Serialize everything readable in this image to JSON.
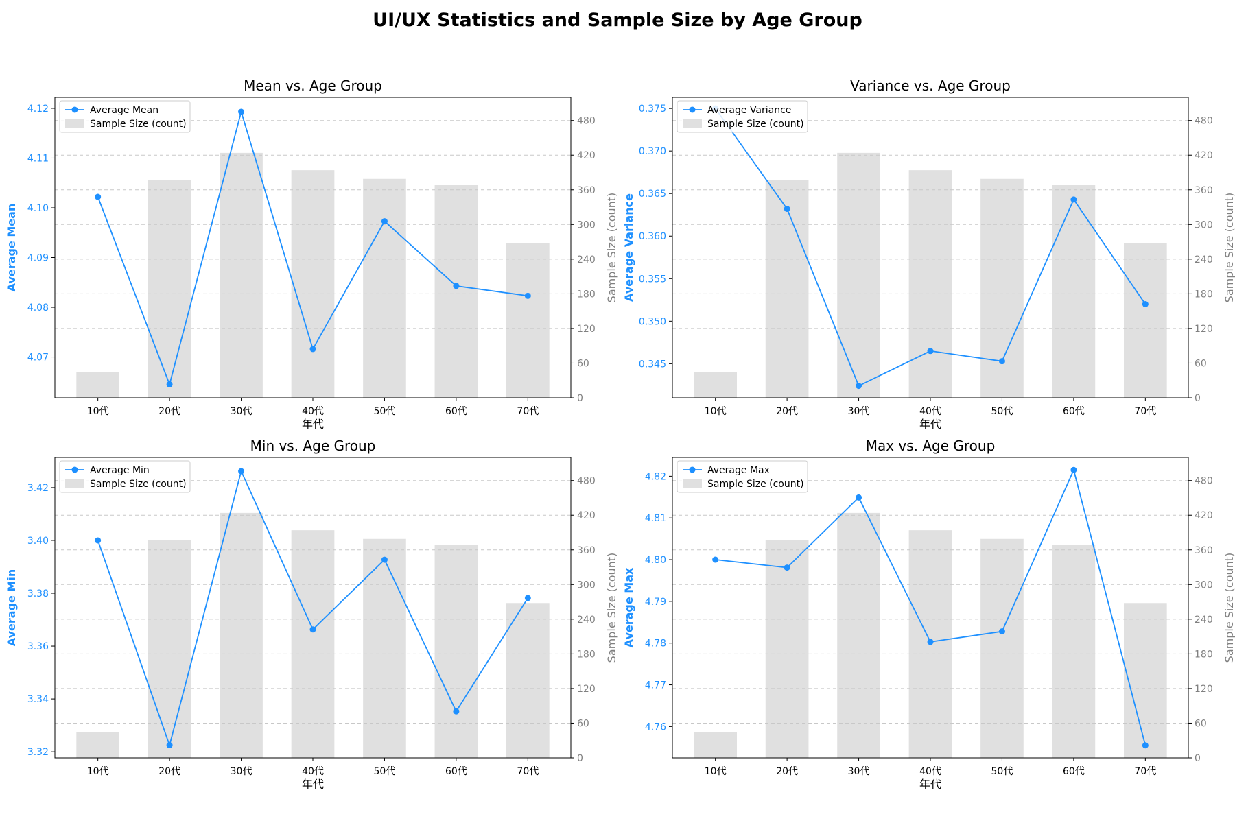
{
  "title": "UI/UX Statistics and Sample Size by Age Group",
  "colors": {
    "line": "#1e90ff",
    "bar": "#e0e0e0",
    "right_axis_text": "#808080",
    "grid": "#c8c8c8"
  },
  "chart_data": [
    {
      "type": "bar+line",
      "title": "Mean vs. Age Group",
      "xlabel": "年代",
      "ylabel": "Average Mean",
      "y2label": "Sample Size (count)",
      "categories": [
        "10代",
        "20代",
        "30代",
        "40代",
        "50代",
        "60代",
        "70代"
      ],
      "line_series": {
        "name": "Average Mean",
        "values": [
          4.1022,
          4.0645,
          4.1193,
          4.0716,
          4.0973,
          4.0843,
          4.0823
        ]
      },
      "bar_series": {
        "name": "Sample Size (count)",
        "values": [
          45,
          377,
          424,
          394,
          379,
          368,
          268
        ]
      },
      "ylim": [
        4.0618,
        4.1222
      ],
      "yticks": [
        4.07,
        4.08,
        4.09,
        4.1,
        4.11,
        4.12
      ],
      "ytick_labels": [
        "4.07",
        "4.08",
        "4.09",
        "4.10",
        "4.11",
        "4.12"
      ],
      "y2lim": [
        0,
        520
      ],
      "y2ticks": [
        0,
        60,
        120,
        180,
        240,
        300,
        360,
        420,
        480
      ],
      "y2tick_labels": [
        "0",
        "60",
        "120",
        "180",
        "240",
        "300",
        "360",
        "420",
        "480"
      ],
      "grid": true,
      "legend_loc": "upper-left"
    },
    {
      "type": "bar+line",
      "title": "Variance vs. Age Group",
      "xlabel": "年代",
      "ylabel": "Average Variance",
      "y2label": "Sample Size (count)",
      "categories": [
        "10代",
        "20代",
        "30代",
        "40代",
        "50代",
        "60代",
        "70代"
      ],
      "line_series": {
        "name": "Average Variance",
        "values": [
          0.375,
          0.3632,
          0.3424,
          0.3465,
          0.3453,
          0.3643,
          0.352
        ]
      },
      "bar_series": {
        "name": "Sample Size (count)",
        "values": [
          45,
          377,
          424,
          394,
          379,
          368,
          268
        ]
      },
      "ylim": [
        0.341,
        0.3763
      ],
      "yticks": [
        0.345,
        0.35,
        0.355,
        0.36,
        0.365,
        0.37,
        0.375
      ],
      "ytick_labels": [
        "0.345",
        "0.350",
        "0.355",
        "0.360",
        "0.365",
        "0.370",
        "0.375"
      ],
      "y2lim": [
        0,
        520
      ],
      "y2ticks": [
        0,
        60,
        120,
        180,
        240,
        300,
        360,
        420,
        480
      ],
      "y2tick_labels": [
        "0",
        "60",
        "120",
        "180",
        "240",
        "300",
        "360",
        "420",
        "480"
      ],
      "grid": true,
      "legend_loc": "upper-left"
    },
    {
      "type": "bar+line",
      "title": "Min vs. Age Group",
      "xlabel": "年代",
      "ylabel": "Average Min",
      "y2label": "Sample Size (count)",
      "categories": [
        "10代",
        "20代",
        "30代",
        "40代",
        "50代",
        "60代",
        "70代"
      ],
      "line_series": {
        "name": "Average Min",
        "values": [
          3.4,
          3.3225,
          3.4262,
          3.3663,
          3.3927,
          3.3353,
          3.3782
        ]
      },
      "bar_series": {
        "name": "Sample Size (count)",
        "values": [
          45,
          377,
          424,
          394,
          379,
          368,
          268
        ]
      },
      "ylim": [
        3.3177,
        3.4314
      ],
      "yticks": [
        3.32,
        3.34,
        3.36,
        3.38,
        3.4,
        3.42
      ],
      "ytick_labels": [
        "3.32",
        "3.34",
        "3.36",
        "3.38",
        "3.40",
        "3.42"
      ],
      "y2lim": [
        0,
        520
      ],
      "y2ticks": [
        0,
        60,
        120,
        180,
        240,
        300,
        360,
        420,
        480
      ],
      "y2tick_labels": [
        "0",
        "60",
        "120",
        "180",
        "240",
        "300",
        "360",
        "420",
        "480"
      ],
      "grid": true,
      "legend_loc": "upper-left"
    },
    {
      "type": "bar+line",
      "title": "Max vs. Age Group",
      "xlabel": "年代",
      "ylabel": "Average Max",
      "y2label": "Sample Size (count)",
      "categories": [
        "10代",
        "20代",
        "30代",
        "40代",
        "50代",
        "60代",
        "70代"
      ],
      "line_series": {
        "name": "Average Max",
        "values": [
          4.8,
          4.7981,
          4.8149,
          4.7803,
          4.7828,
          4.8215,
          4.7555
        ]
      },
      "bar_series": {
        "name": "Sample Size (count)",
        "values": [
          45,
          377,
          424,
          394,
          379,
          368,
          268
        ]
      },
      "ylim": [
        4.7525,
        4.8245
      ],
      "yticks": [
        4.76,
        4.77,
        4.78,
        4.79,
        4.8,
        4.81,
        4.82
      ],
      "ytick_labels": [
        "4.76",
        "4.77",
        "4.78",
        "4.79",
        "4.80",
        "4.81",
        "4.82"
      ],
      "y2lim": [
        0,
        520
      ],
      "y2ticks": [
        0,
        60,
        120,
        180,
        240,
        300,
        360,
        420,
        480
      ],
      "y2tick_labels": [
        "0",
        "60",
        "120",
        "180",
        "240",
        "300",
        "360",
        "420",
        "480"
      ],
      "grid": true,
      "legend_loc": "upper-left"
    }
  ]
}
